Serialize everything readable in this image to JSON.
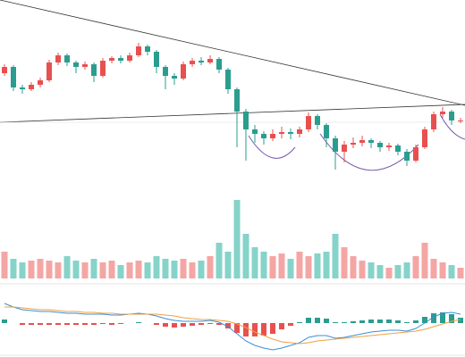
{
  "chart_data": [
    {
      "type": "candlestick",
      "up_color": "#e8504f",
      "down_color": "#2a9d8f",
      "ylim": [
        0,
        200
      ],
      "open": [
        118,
        125,
        102,
        100,
        105,
        110,
        130,
        138,
        130,
        125,
        128,
        115,
        132,
        135,
        132,
        138,
        148,
        142,
        125,
        115,
        112,
        128,
        132,
        130,
        134,
        122,
        100,
        75,
        55,
        50,
        45,
        50,
        52,
        50,
        55,
        70,
        60,
        45,
        30,
        38,
        40,
        43,
        40,
        35,
        37,
        30,
        20,
        35,
        55,
        72,
        75,
        65
      ],
      "high": [
        128,
        127,
        105,
        108,
        113,
        133,
        141,
        140,
        132,
        131,
        130,
        135,
        137,
        138,
        141,
        152,
        150,
        144,
        127,
        118,
        131,
        135,
        136,
        138,
        136,
        124,
        102,
        78,
        60,
        53,
        55,
        58,
        56,
        58,
        74,
        72,
        62,
        48,
        42,
        46,
        48,
        45,
        42,
        40,
        39,
        33,
        38,
        58,
        75,
        80,
        77,
        68
      ],
      "low": [
        115,
        98,
        95,
        98,
        102,
        108,
        127,
        126,
        118,
        122,
        108,
        113,
        129,
        129,
        130,
        136,
        138,
        118,
        100,
        105,
        110,
        125,
        127,
        128,
        118,
        95,
        35,
        20,
        40,
        38,
        42,
        45,
        44,
        46,
        52,
        55,
        35,
        10,
        18,
        34,
        36,
        34,
        30,
        31,
        26,
        14,
        18,
        33,
        52,
        68,
        60,
        62
      ],
      "close": [
        125,
        102,
        100,
        105,
        110,
        130,
        138,
        130,
        125,
        128,
        115,
        132,
        135,
        132,
        138,
        148,
        142,
        125,
        115,
        112,
        128,
        132,
        130,
        134,
        122,
        100,
        75,
        55,
        50,
        45,
        50,
        52,
        50,
        55,
        70,
        60,
        45,
        30,
        38,
        40,
        43,
        40,
        35,
        37,
        30,
        20,
        35,
        55,
        72,
        75,
        65,
        65
      ]
    },
    {
      "type": "volume",
      "up_color": "#f4a6a4",
      "down_color": "#86d3c9",
      "ylim": [
        0,
        100
      ],
      "values": [
        30,
        22,
        18,
        20,
        22,
        20,
        18,
        25,
        20,
        18,
        22,
        18,
        20,
        15,
        18,
        20,
        18,
        25,
        22,
        20,
        22,
        18,
        20,
        25,
        40,
        30,
        88,
        50,
        35,
        30,
        25,
        28,
        22,
        30,
        25,
        28,
        30,
        50,
        35,
        25,
        20,
        18,
        15,
        12,
        15,
        18,
        25,
        40,
        22,
        18,
        15,
        12
      ]
    },
    {
      "type": "macd",
      "ylim": [
        -36,
        36
      ],
      "up_color": "#2a9d8f",
      "down_color": "#e8504f",
      "series": [
        {
          "color": "#3a8fd9",
          "values": [
            22,
            18,
            15,
            14,
            13,
            13,
            12,
            11,
            11,
            10,
            10,
            10,
            9,
            9,
            10,
            11,
            10,
            8,
            5,
            3,
            2,
            2,
            2,
            3,
            1,
            -4,
            -12,
            -20,
            -25,
            -28,
            -30,
            -28,
            -25,
            -22,
            -16,
            -14,
            -14,
            -17,
            -16,
            -14,
            -12,
            -10,
            -9,
            -8,
            -8,
            -9,
            -6,
            0,
            7,
            11,
            12,
            10
          ]
        },
        {
          "color": "#f0a040",
          "values": [
            18,
            18,
            17,
            16,
            15,
            15,
            14,
            13,
            13,
            12,
            12,
            11,
            11,
            10,
            10,
            10,
            10,
            10,
            9,
            8,
            6,
            5,
            4,
            4,
            3,
            2,
            -1,
            -5,
            -10,
            -14,
            -18,
            -21,
            -22,
            -23,
            -22,
            -20,
            -19,
            -18,
            -17,
            -16,
            -15,
            -14,
            -13,
            -12,
            -11,
            -10,
            -9,
            -7,
            -4,
            -1,
            2,
            4
          ]
        }
      ],
      "histogram": [
        4,
        0,
        -2,
        -2,
        -2,
        -2,
        -2,
        -2,
        -2,
        -2,
        -2,
        -1,
        -2,
        -1,
        0,
        1,
        0,
        -2,
        -4,
        -5,
        -4,
        -3,
        -2,
        -1,
        -2,
        -6,
        -11,
        -15,
        -15,
        -14,
        -12,
        -7,
        -3,
        1,
        6,
        6,
        5,
        1,
        1,
        2,
        3,
        4,
        4,
        4,
        3,
        1,
        3,
        7,
        11,
        12,
        10,
        6
      ]
    }
  ]
}
